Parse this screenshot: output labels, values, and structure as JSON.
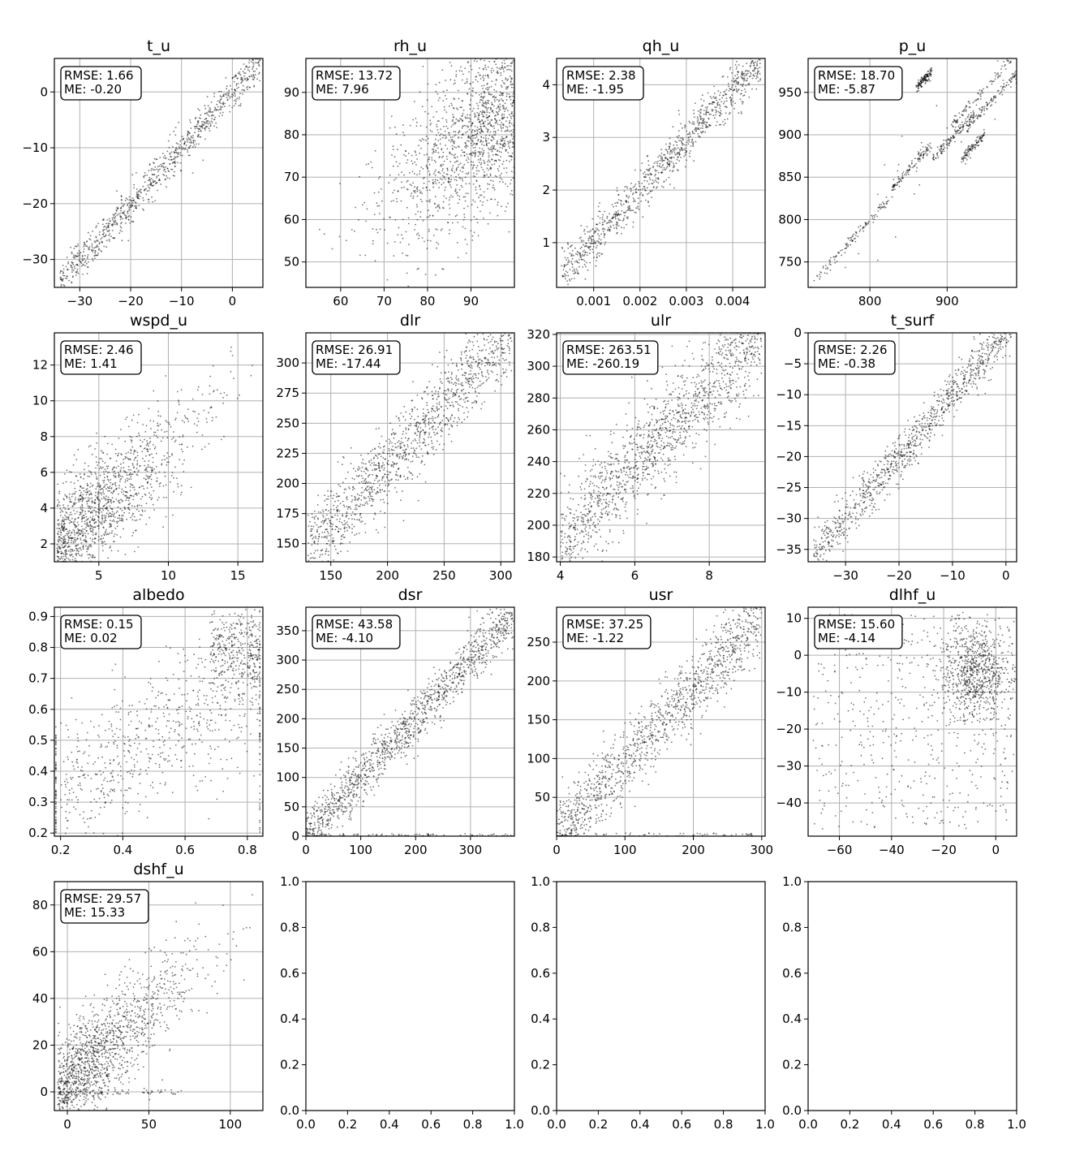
{
  "figure": {
    "layout": "4x4 grid of scatter subplots"
  },
  "chart_data": [
    {
      "type": "scatter",
      "title": "t_u",
      "xlim": [
        -35,
        6
      ],
      "ylim": [
        -35,
        6
      ],
      "xticks": [
        -30,
        -20,
        -10,
        0
      ],
      "yticks": [
        -30,
        -20,
        -10,
        0
      ],
      "xtick_labels": [
        "−30",
        "−20",
        "−10",
        "0"
      ],
      "ytick_labels": [
        "−30",
        "−20",
        "−10",
        "0"
      ],
      "grid": true,
      "stats": {
        "rmse": "RMSE: 1.66",
        "me": "ME: -0.20"
      },
      "pattern": {
        "kind": "diag",
        "center": "y=x",
        "spread": 1.6,
        "n": 900
      }
    },
    {
      "type": "scatter",
      "title": "rh_u",
      "xlim": [
        52,
        100
      ],
      "ylim": [
        44,
        98
      ],
      "xticks": [
        60,
        70,
        80,
        90
      ],
      "yticks": [
        50,
        60,
        70,
        80,
        90
      ],
      "xtick_labels": [
        "60",
        "70",
        "80",
        "90"
      ],
      "ytick_labels": [
        "50",
        "60",
        "70",
        "80",
        "90"
      ],
      "grid": true,
      "stats": {
        "rmse": "RMSE: 13.72",
        "me": "ME: 7.96"
      },
      "pattern": {
        "kind": "cloud",
        "center": "y≈0.8x+4",
        "spread": 9,
        "n": 1400
      }
    },
    {
      "type": "scatter",
      "title": "qh_u",
      "xlim": [
        0.0002,
        0.0047
      ],
      "ylim": [
        0.15,
        4.5
      ],
      "xticks": [
        0.001,
        0.002,
        0.003,
        0.004
      ],
      "yticks": [
        1,
        2,
        3,
        4
      ],
      "xtick_labels": [
        "0.001",
        "0.002",
        "0.003",
        "0.004"
      ],
      "ytick_labels": [
        "1",
        "2",
        "3",
        "4"
      ],
      "grid": true,
      "stats": {
        "rmse": "RMSE: 2.38",
        "me": "ME: -1.95"
      },
      "pattern": {
        "kind": "curve",
        "center": "y≈1000x",
        "spread": 0.25,
        "n": 1000
      }
    },
    {
      "type": "scatter",
      "title": "p_u",
      "xlim": [
        720,
        990
      ],
      "ylim": [
        720,
        990
      ],
      "xticks": [
        800,
        900
      ],
      "yticks": [
        750,
        800,
        850,
        900,
        950
      ],
      "xtick_labels": [
        "800",
        "900"
      ],
      "ytick_labels": [
        "750",
        "800",
        "850",
        "900",
        "950"
      ],
      "grid": true,
      "stats": {
        "rmse": "RMSE: 18.70",
        "me": "ME: -5.87"
      },
      "pattern": {
        "kind": "streaks",
        "n": 800
      }
    },
    {
      "type": "scatter",
      "title": "wspd_u",
      "xlim": [
        1.8,
        16.8
      ],
      "ylim": [
        1,
        13.8
      ],
      "xticks": [
        5,
        10,
        15
      ],
      "yticks": [
        2,
        4,
        6,
        8,
        10,
        12
      ],
      "xtick_labels": [
        "5",
        "10",
        "15"
      ],
      "ytick_labels": [
        "2",
        "4",
        "6",
        "8",
        "10",
        "12"
      ],
      "grid": true,
      "stats": {
        "rmse": "RMSE: 2.46",
        "me": "ME: 1.41"
      },
      "pattern": {
        "kind": "cloud",
        "center": "y≈0.75x",
        "spread": 1.5,
        "n": 1400
      }
    },
    {
      "type": "scatter",
      "title": "dlr",
      "xlim": [
        128,
        312
      ],
      "ylim": [
        135,
        325
      ],
      "xticks": [
        150,
        200,
        250,
        300
      ],
      "yticks": [
        150,
        175,
        200,
        225,
        250,
        275,
        300
      ],
      "xtick_labels": [
        "150",
        "200",
        "250",
        "300"
      ],
      "ytick_labels": [
        "150",
        "175",
        "200",
        "225",
        "250",
        "275",
        "300"
      ],
      "grid": true,
      "stats": {
        "rmse": "RMSE: 26.91",
        "me": "ME: -17.44"
      },
      "pattern": {
        "kind": "diag",
        "center": "y≈x+17",
        "spread": 16,
        "n": 1300
      }
    },
    {
      "type": "scatter",
      "title": "ulr",
      "xlim": [
        3.9,
        9.5
      ],
      "ylim": [
        177,
        321
      ],
      "xticks": [
        4,
        6,
        8
      ],
      "yticks": [
        180,
        200,
        220,
        240,
        260,
        280,
        300,
        320
      ],
      "xtick_labels": [
        "4",
        "6",
        "8"
      ],
      "ytick_labels": [
        "180",
        "200",
        "220",
        "240",
        "260",
        "280",
        "300",
        "320"
      ],
      "grid": true,
      "stats": {
        "rmse": "RMSE: 263.51",
        "me": "ME: -260.19"
      },
      "pattern": {
        "kind": "cloud",
        "center": "y≈200+23(x−4.3)",
        "spread": 14,
        "n": 1400
      }
    },
    {
      "type": "scatter",
      "title": "t_surf",
      "xlim": [
        -37,
        2
      ],
      "ylim": [
        -37,
        0
      ],
      "xticks": [
        -30,
        -20,
        -10,
        0
      ],
      "yticks": [
        -35,
        -30,
        -25,
        -20,
        -15,
        -10,
        -5,
        0
      ],
      "xtick_labels": [
        "−30",
        "−20",
        "−10",
        "0"
      ],
      "ytick_labels": [
        "−35",
        "−30",
        "−25",
        "−20",
        "−15",
        "−10",
        "−5",
        "0"
      ],
      "grid": true,
      "stats": {
        "rmse": "RMSE: 2.26",
        "me": "ME: -0.38"
      },
      "pattern": {
        "kind": "diag",
        "center": "y=x",
        "spread": 1.8,
        "n": 1000
      }
    },
    {
      "type": "scatter",
      "title": "albedo",
      "xlim": [
        0.18,
        0.85
      ],
      "ylim": [
        0.19,
        0.93
      ],
      "xticks": [
        0.2,
        0.4,
        0.6,
        0.8
      ],
      "yticks": [
        0.2,
        0.3,
        0.4,
        0.5,
        0.6,
        0.7,
        0.8,
        0.9
      ],
      "xtick_labels": [
        "0.2",
        "0.4",
        "0.6",
        "0.8"
      ],
      "ytick_labels": [
        "0.2",
        "0.3",
        "0.4",
        "0.5",
        "0.6",
        "0.7",
        "0.8",
        "0.9"
      ],
      "grid": true,
      "stats": {
        "rmse": "RMSE: 0.15",
        "me": "ME: 0.02"
      },
      "pattern": {
        "kind": "albedo",
        "n": 1000
      }
    },
    {
      "type": "scatter",
      "title": "dsr",
      "xlim": [
        0,
        380
      ],
      "ylim": [
        0,
        390
      ],
      "xticks": [
        0,
        100,
        200,
        300
      ],
      "yticks": [
        0,
        50,
        100,
        150,
        200,
        250,
        300,
        350
      ],
      "xtick_labels": [
        "0",
        "100",
        "200",
        "300"
      ],
      "ytick_labels": [
        "0",
        "50",
        "100",
        "150",
        "200",
        "250",
        "300",
        "350"
      ],
      "grid": true,
      "stats": {
        "rmse": "RMSE: 43.58",
        "me": "ME: -4.10"
      },
      "pattern": {
        "kind": "diag",
        "center": "y=x",
        "spread": 22,
        "n": 1300
      }
    },
    {
      "type": "scatter",
      "title": "usr",
      "xlim": [
        0,
        305
      ],
      "ylim": [
        0,
        295
      ],
      "xticks": [
        0,
        100,
        200,
        300
      ],
      "yticks": [
        50,
        100,
        150,
        200,
        250
      ],
      "xtick_labels": [
        "0",
        "100",
        "200",
        "300"
      ],
      "ytick_labels": [
        "50",
        "100",
        "150",
        "200",
        "250"
      ],
      "grid": true,
      "stats": {
        "rmse": "RMSE: 37.25",
        "me": "ME: -1.22"
      },
      "pattern": {
        "kind": "diag",
        "center": "y=x",
        "spread": 24,
        "n": 1300
      }
    },
    {
      "type": "scatter",
      "title": "dlhf_u",
      "xlim": [
        -72,
        8
      ],
      "ylim": [
        -49,
        13
      ],
      "xticks": [
        -60,
        -40,
        -20,
        0
      ],
      "yticks": [
        -40,
        -30,
        -20,
        -10,
        0,
        10
      ],
      "xtick_labels": [
        "−60",
        "−40",
        "−20",
        "0"
      ],
      "ytick_labels": [
        "−40",
        "−30",
        "−20",
        "−10",
        "0",
        "10"
      ],
      "grid": true,
      "stats": {
        "rmse": "RMSE: 15.60",
        "me": "ME: -4.14"
      },
      "pattern": {
        "kind": "blob",
        "center": [
          -8,
          -5
        ],
        "n": 1300
      }
    },
    {
      "type": "scatter",
      "title": "dshf_u",
      "xlim": [
        -8,
        120
      ],
      "ylim": [
        -8,
        90
      ],
      "xticks": [
        0,
        50,
        100
      ],
      "yticks": [
        0,
        20,
        40,
        60,
        80
      ],
      "xtick_labels": [
        "0",
        "50",
        "100"
      ],
      "ytick_labels": [
        "0",
        "20",
        "40",
        "60",
        "80"
      ],
      "grid": true,
      "stats": {
        "rmse": "RMSE: 29.57",
        "me": "ME: 15.33"
      },
      "pattern": {
        "kind": "cloud",
        "center": "y≈0.65x+5",
        "spread": 11,
        "n": 1400
      }
    },
    {
      "type": "empty",
      "title": "",
      "xlim": [
        0,
        1
      ],
      "ylim": [
        0,
        1
      ],
      "xticks": [
        0,
        0.2,
        0.4,
        0.6,
        0.8,
        1
      ],
      "yticks": [
        0,
        0.2,
        0.4,
        0.6,
        0.8,
        1
      ],
      "xtick_labels": [
        "0.0",
        "0.2",
        "0.4",
        "0.6",
        "0.8",
        "1.0"
      ],
      "ytick_labels": [
        "0.0",
        "0.2",
        "0.4",
        "0.6",
        "0.8",
        "1.0"
      ],
      "grid": false
    },
    {
      "type": "empty",
      "title": "",
      "xlim": [
        0,
        1
      ],
      "ylim": [
        0,
        1
      ],
      "xticks": [
        0,
        0.2,
        0.4,
        0.6,
        0.8,
        1
      ],
      "yticks": [
        0,
        0.2,
        0.4,
        0.6,
        0.8,
        1
      ],
      "xtick_labels": [
        "0.0",
        "0.2",
        "0.4",
        "0.6",
        "0.8",
        "1.0"
      ],
      "ytick_labels": [
        "0.0",
        "0.2",
        "0.4",
        "0.6",
        "0.8",
        "1.0"
      ],
      "grid": false
    },
    {
      "type": "empty",
      "title": "",
      "xlim": [
        0,
        1
      ],
      "ylim": [
        0,
        1
      ],
      "xticks": [
        0,
        0.2,
        0.4,
        0.6,
        0.8,
        1
      ],
      "yticks": [
        0,
        0.2,
        0.4,
        0.6,
        0.8,
        1
      ],
      "xtick_labels": [
        "0.0",
        "0.2",
        "0.4",
        "0.6",
        "0.8",
        "1.0"
      ],
      "ytick_labels": [
        "0.0",
        "0.2",
        "0.4",
        "0.6",
        "0.8",
        "1.0"
      ],
      "grid": false
    }
  ]
}
